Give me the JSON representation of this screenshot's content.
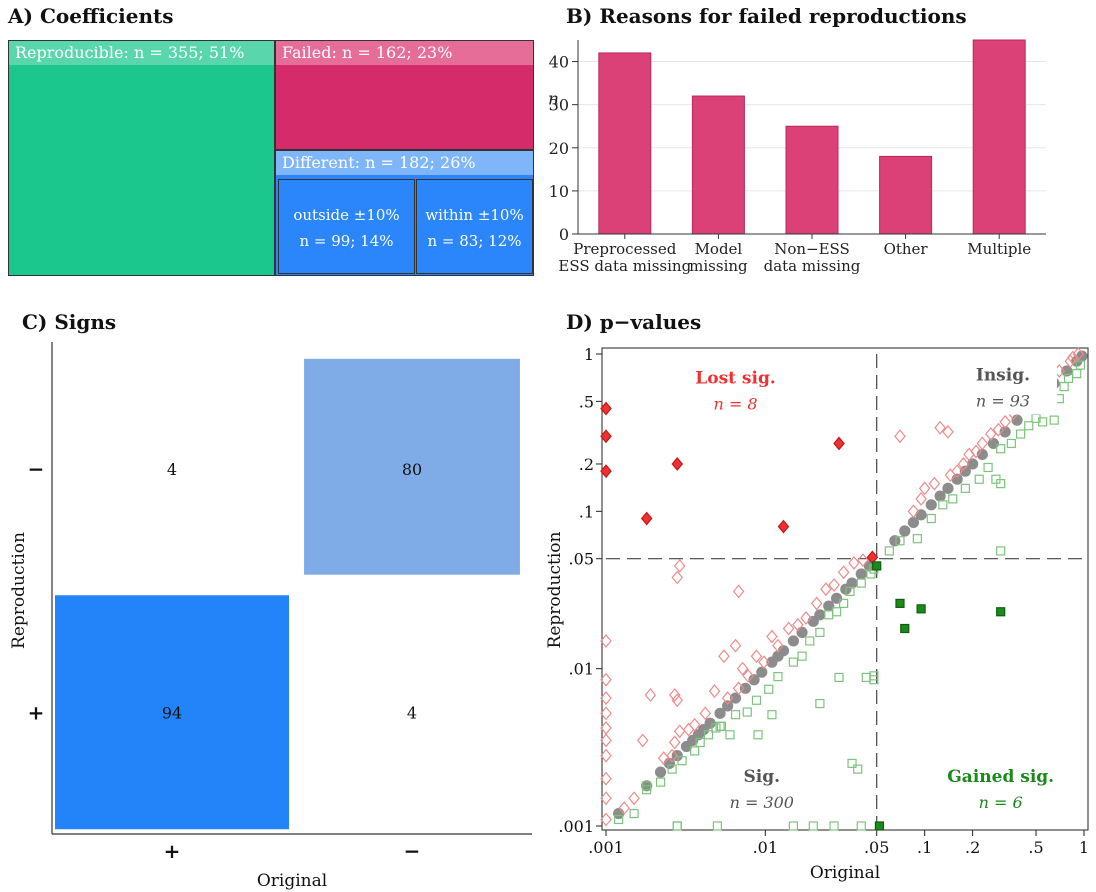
{
  "panels": {
    "a_title": "A) Coefficients",
    "b_title": "B) Reasons for failed reproductions",
    "c_title": "C) Signs",
    "d_title": "D) p−values"
  },
  "colors": {
    "reproducible": "#1bc78c",
    "reproducible_header": "#5ad6ad",
    "failed": "#d62b6a",
    "failed_header": "#e66d97",
    "different_header": "#7fb6fa",
    "different": "#2a86fa",
    "bar": "#db4177",
    "sign_light": "#7fabe6",
    "sign_dark": "#2284f8",
    "lost_sig": "#f03030",
    "gained_sig": "#1a8a1a",
    "sig_gray": "#555555"
  },
  "chart_data": [
    {
      "type": "treemap",
      "title": "A) Coefficients",
      "nodes": [
        {
          "label": "Reproducible",
          "n": 355,
          "pct": "51%",
          "header": "Reproducible: n = 355; 51%"
        },
        {
          "label": "Failed",
          "n": 162,
          "pct": "23%",
          "header": "Failed: n = 162; 23%"
        },
        {
          "label": "Different",
          "n": 182,
          "pct": "26%",
          "header": "Different: n = 182; 26%",
          "children": [
            {
              "label": "outside ±10%",
              "n": 99,
              "pct": "14%",
              "line2": "n = 99; 14%"
            },
            {
              "label": "within ±10%",
              "n": 83,
              "pct": "12%",
              "line2": "n = 83; 12%"
            }
          ]
        }
      ]
    },
    {
      "type": "bar",
      "title": "B) Reasons for failed reproductions",
      "ylabel": "n",
      "categories": [
        [
          "Preprocessed",
          "ESS data missing"
        ],
        [
          "Model",
          "missing"
        ],
        [
          "Non−ESS",
          "data missing"
        ],
        [
          "Other"
        ],
        [
          "Multiple"
        ]
      ],
      "values": [
        42,
        32,
        25,
        18,
        45
      ],
      "ylim": [
        0,
        45
      ],
      "yticks": [
        0,
        10,
        20,
        30,
        40
      ],
      "grid": true
    },
    {
      "type": "heatmap",
      "title": "C) Signs",
      "xlabel": "Original",
      "ylabel": "Reproduction",
      "x_categories": [
        "+",
        "−"
      ],
      "y_categories": [
        "−",
        "+"
      ],
      "cells": [
        {
          "original": "+",
          "reproduction": "−",
          "value": 4
        },
        {
          "original": "−",
          "reproduction": "−",
          "value": 80
        },
        {
          "original": "+",
          "reproduction": "+",
          "value": 94
        },
        {
          "original": "−",
          "reproduction": "+",
          "value": 4
        }
      ]
    },
    {
      "type": "scatter",
      "title": "D) p−values",
      "xlabel": "Original",
      "ylabel": "Reproduction",
      "scale": "log",
      "xlim": [
        0.001,
        1
      ],
      "ylim": [
        0.001,
        1
      ],
      "xticks": [
        {
          "v": 0.001,
          "l": ".001"
        },
        {
          "v": 0.01,
          "l": ".01"
        },
        {
          "v": 0.05,
          "l": ".05"
        },
        {
          "v": 0.1,
          "l": ".1"
        },
        {
          "v": 0.2,
          "l": ".2"
        },
        {
          "v": 0.5,
          "l": ".5"
        },
        {
          "v": 1,
          "l": "1"
        }
      ],
      "yticks": [
        {
          "v": 0.001,
          "l": ".001"
        },
        {
          "v": 0.01,
          "l": ".01"
        },
        {
          "v": 0.05,
          "l": ".05"
        },
        {
          "v": 0.1,
          "l": ".1"
        },
        {
          "v": 0.2,
          "l": ".2"
        },
        {
          "v": 0.5,
          "l": ".5"
        },
        {
          "v": 1,
          "l": "1"
        }
      ],
      "threshold": 0.05,
      "annotations": [
        {
          "title": "Lost sig.",
          "count": "n = 8"
        },
        {
          "title": "Insig.",
          "count": "n = 93"
        },
        {
          "title": "Sig.",
          "count": "n = 300"
        },
        {
          "title": "Gained sig.",
          "count": "n = 6"
        }
      ],
      "series": [
        {
          "kind": "same",
          "points": [
            [
              0.0012,
              0.0012
            ],
            [
              0.0018,
              0.0018
            ],
            [
              0.0022,
              0.0022
            ],
            [
              0.0025,
              0.0025
            ],
            [
              0.0028,
              0.0028
            ],
            [
              0.0032,
              0.0032
            ],
            [
              0.0035,
              0.0035
            ],
            [
              0.0038,
              0.0038
            ],
            [
              0.0041,
              0.0041
            ],
            [
              0.0045,
              0.0045
            ],
            [
              0.0052,
              0.0052
            ],
            [
              0.0058,
              0.0058
            ],
            [
              0.0065,
              0.0065
            ],
            [
              0.0075,
              0.0075
            ],
            [
              0.0085,
              0.0085
            ],
            [
              0.0095,
              0.0095
            ],
            [
              0.011,
              0.011
            ],
            [
              0.012,
              0.012
            ],
            [
              0.013,
              0.013
            ],
            [
              0.015,
              0.015
            ],
            [
              0.017,
              0.017
            ],
            [
              0.02,
              0.02
            ],
            [
              0.022,
              0.022
            ],
            [
              0.025,
              0.025
            ],
            [
              0.028,
              0.028
            ],
            [
              0.032,
              0.032
            ],
            [
              0.035,
              0.035
            ],
            [
              0.04,
              0.04
            ],
            [
              0.045,
              0.045
            ],
            [
              0.065,
              0.065
            ],
            [
              0.075,
              0.075
            ],
            [
              0.085,
              0.085
            ],
            [
              0.095,
              0.095
            ],
            [
              0.11,
              0.11
            ],
            [
              0.125,
              0.125
            ],
            [
              0.14,
              0.14
            ],
            [
              0.16,
              0.16
            ],
            [
              0.18,
              0.18
            ],
            [
              0.2,
              0.2
            ],
            [
              0.23,
              0.23
            ],
            [
              0.27,
              0.27
            ],
            [
              0.32,
              0.32
            ],
            [
              0.38,
              0.38
            ],
            [
              0.45,
              0.45
            ],
            [
              0.55,
              0.55
            ],
            [
              0.65,
              0.65
            ],
            [
              0.78,
              0.78
            ],
            [
              0.9,
              0.9
            ],
            [
              0.97,
              0.97
            ]
          ]
        },
        {
          "kind": "up",
          "points": [
            [
              0.001,
              0.0011
            ],
            [
              0.001,
              0.0015
            ],
            [
              0.001,
              0.002
            ],
            [
              0.001,
              0.0028
            ],
            [
              0.001,
              0.0035
            ],
            [
              0.001,
              0.0042
            ],
            [
              0.001,
              0.0052
            ],
            [
              0.001,
              0.0065
            ],
            [
              0.001,
              0.0085
            ],
            [
              0.001,
              0.015
            ],
            [
              0.0013,
              0.0013
            ],
            [
              0.0015,
              0.0015
            ],
            [
              0.0017,
              0.0035
            ],
            [
              0.0019,
              0.0068
            ],
            [
              0.0023,
              0.0027
            ],
            [
              0.0026,
              0.0028
            ],
            [
              0.0027,
              0.0034
            ],
            [
              0.0029,
              0.004
            ],
            [
              0.0027,
              0.0068
            ],
            [
              0.0028,
              0.0063
            ],
            [
              0.0028,
              0.038
            ],
            [
              0.0029,
              0.045
            ],
            [
              0.0033,
              0.0041
            ],
            [
              0.0036,
              0.0044
            ],
            [
              0.0042,
              0.0052
            ],
            [
              0.0048,
              0.0072
            ],
            [
              0.0055,
              0.012
            ],
            [
              0.0058,
              0.0065
            ],
            [
              0.0065,
              0.014
            ],
            [
              0.0068,
              0.0075
            ],
            [
              0.0068,
              0.031
            ],
            [
              0.0072,
              0.01
            ],
            [
              0.0078,
              0.009
            ],
            [
              0.0088,
              0.012
            ],
            [
              0.0098,
              0.011
            ],
            [
              0.011,
              0.016
            ],
            [
              0.012,
              0.014
            ],
            [
              0.014,
              0.018
            ],
            [
              0.016,
              0.019
            ],
            [
              0.018,
              0.021
            ],
            [
              0.021,
              0.026
            ],
            [
              0.024,
              0.032
            ],
            [
              0.027,
              0.034
            ],
            [
              0.031,
              0.041
            ],
            [
              0.036,
              0.047
            ],
            [
              0.041,
              0.049
            ],
            [
              0.07,
              0.3
            ],
            [
              0.085,
              0.1
            ],
            [
              0.095,
              0.12
            ],
            [
              0.1,
              0.14
            ],
            [
              0.115,
              0.15
            ],
            [
              0.125,
              0.34
            ],
            [
              0.14,
              0.32
            ],
            [
              0.145,
              0.17
            ],
            [
              0.16,
              0.18
            ],
            [
              0.175,
              0.2
            ],
            [
              0.19,
              0.23
            ],
            [
              0.21,
              0.24
            ],
            [
              0.23,
              0.27
            ],
            [
              0.26,
              0.31
            ],
            [
              0.29,
              0.33
            ],
            [
              0.32,
              0.37
            ],
            [
              0.36,
              0.42
            ],
            [
              0.42,
              0.48
            ],
            [
              0.45,
              0.52
            ],
            [
              0.5,
              0.58
            ],
            [
              0.55,
              0.62
            ],
            [
              0.62,
              0.68
            ],
            [
              0.7,
              0.78
            ],
            [
              0.82,
              0.9
            ],
            [
              0.85,
              0.95
            ],
            [
              0.92,
              1
            ]
          ]
        },
        {
          "kind": "down",
          "points": [
            [
              0.0012,
              0.0011
            ],
            [
              0.0015,
              0.0012
            ],
            [
              0.0018,
              0.0017
            ],
            [
              0.0022,
              0.0019
            ],
            [
              0.0026,
              0.0023
            ],
            [
              0.003,
              0.0026
            ],
            [
              0.0036,
              0.003
            ],
            [
              0.0039,
              0.0034
            ],
            [
              0.0044,
              0.0038
            ],
            [
              0.0049,
              0.0042
            ],
            [
              0.0053,
              0.0043
            ],
            [
              0.006,
              0.0038
            ],
            [
              0.0065,
              0.0051
            ],
            [
              0.0077,
              0.0053
            ],
            [
              0.0088,
              0.0063
            ],
            [
              0.0105,
              0.0074
            ],
            [
              0.012,
              0.0089
            ],
            [
              0.015,
              0.011
            ],
            [
              0.017,
              0.012
            ],
            [
              0.019,
              0.015
            ],
            [
              0.022,
              0.017
            ],
            [
              0.025,
              0.022
            ],
            [
              0.028,
              0.023
            ],
            [
              0.031,
              0.026
            ],
            [
              0.034,
              0.031
            ],
            [
              0.04,
              0.035
            ],
            [
              0.046,
              0.04
            ],
            [
              0.048,
              0.043
            ],
            [
              0.043,
              0.0088
            ],
            [
              0.048,
              0.0085
            ],
            [
              0.048,
              0.009
            ],
            [
              0.029,
              0.0088
            ],
            [
              0.022,
              0.006
            ],
            [
              0.011,
              0.0051
            ],
            [
              0.009,
              0.0038
            ],
            [
              0.0052,
              0.0043
            ],
            [
              0.0028,
              0.001
            ],
            [
              0.0028,
              0.001
            ],
            [
              0.005,
              0.001
            ],
            [
              0.015,
              0.001
            ],
            [
              0.02,
              0.001
            ],
            [
              0.027,
              0.001
            ],
            [
              0.04,
              0.001
            ],
            [
              0.0018,
              0.0018
            ],
            [
              0.035,
              0.0025
            ],
            [
              0.038,
              0.0023
            ],
            [
              0.06,
              0.056
            ],
            [
              0.07,
              0.065
            ],
            [
              0.09,
              0.067
            ],
            [
              0.11,
              0.09
            ],
            [
              0.13,
              0.11
            ],
            [
              0.15,
              0.12
            ],
            [
              0.18,
              0.14
            ],
            [
              0.22,
              0.16
            ],
            [
              0.25,
              0.19
            ],
            [
              0.28,
              0.16
            ],
            [
              0.3,
              0.25
            ],
            [
              0.3,
              0.056
            ],
            [
              0.3,
              0.15
            ],
            [
              0.35,
              0.27
            ],
            [
              0.4,
              0.31
            ],
            [
              0.45,
              0.35
            ],
            [
              0.5,
              0.39
            ],
            [
              0.55,
              0.37
            ],
            [
              0.6,
              0.48
            ],
            [
              0.65,
              0.38
            ],
            [
              0.7,
              0.52
            ],
            [
              0.75,
              0.62
            ],
            [
              0.8,
              0.7
            ],
            [
              0.9,
              0.75
            ],
            [
              0.95,
              0.85
            ]
          ]
        },
        {
          "kind": "lost",
          "points": [
            [
              0.001,
              0.45
            ],
            [
              0.001,
              0.3
            ],
            [
              0.001,
              0.18
            ],
            [
              0.0018,
              0.09
            ],
            [
              0.0028,
              0.2
            ],
            [
              0.013,
              0.08
            ],
            [
              0.029,
              0.27
            ],
            [
              0.047,
              0.051
            ]
          ]
        },
        {
          "kind": "gained",
          "points": [
            [
              0.05,
              0.045
            ],
            [
              0.052,
              0.001
            ],
            [
              0.07,
              0.026
            ],
            [
              0.075,
              0.018
            ],
            [
              0.095,
              0.024
            ],
            [
              0.3,
              0.023
            ]
          ]
        }
      ]
    }
  ]
}
